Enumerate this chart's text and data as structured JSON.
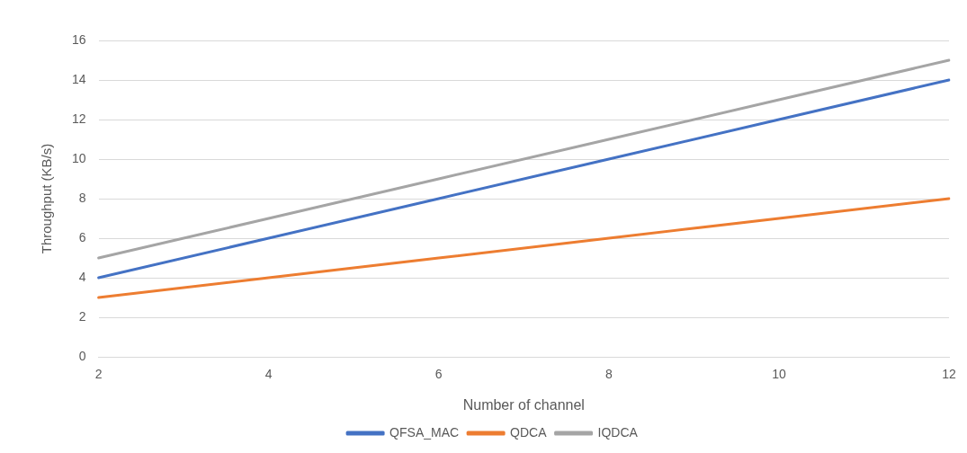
{
  "chart_data": {
    "type": "line",
    "xlabel": "Number of channel",
    "ylabel": "Throughput (KB/s)",
    "categories": [
      "2",
      "4",
      "6",
      "8",
      "10",
      "12"
    ],
    "series": [
      {
        "name": "QFSA_MAC",
        "color": "#4472c4",
        "values": [
          4,
          6,
          8,
          10,
          12,
          14
        ]
      },
      {
        "name": "QDCA",
        "color": "#ed7d31",
        "values": [
          3,
          4,
          5,
          6,
          7,
          8
        ]
      },
      {
        "name": "IQDCA",
        "color": "#a5a5a5",
        "values": [
          5,
          7,
          9,
          11,
          13,
          15
        ]
      }
    ],
    "ylim": [
      0,
      16
    ],
    "yticks": [
      0,
      2,
      4,
      6,
      8,
      10,
      12,
      14,
      16
    ],
    "grid": "y",
    "legend": "bottom",
    "marker": "none",
    "line_style": "solid"
  }
}
